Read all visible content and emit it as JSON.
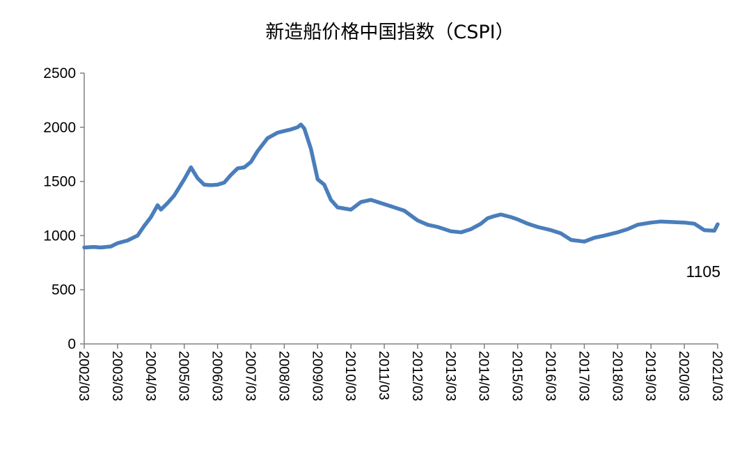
{
  "chart_data": {
    "type": "line",
    "title": "新造船价格中国指数（CSPI）",
    "xlabel": "",
    "ylabel": "",
    "ylim": [
      0,
      2500
    ],
    "yticks": [
      "0",
      "500",
      "1000",
      "1500",
      "2000",
      "2500"
    ],
    "grid": false,
    "legend": "none",
    "x_tick_labels": [
      "2002/03",
      "2003/03",
      "2004/03",
      "2005/03",
      "2006/03",
      "2007/03",
      "2008/03",
      "2009/03",
      "2010/03",
      "2011/03",
      "2012/03",
      "2013/03",
      "2014/03",
      "2015/03",
      "2016/03",
      "2017/03",
      "2018/03",
      "2019/03",
      "2020/03",
      "2021/03"
    ],
    "series": [
      {
        "color": "#4a7ebb",
        "x": [
          2002.0,
          2002.3,
          2002.5,
          2002.8,
          2003.0,
          2003.3,
          2003.6,
          2003.8,
          2004.0,
          2004.2,
          2004.3,
          2004.5,
          2004.7,
          2004.8,
          2005.0,
          2005.2,
          2005.4,
          2005.6,
          2005.8,
          2006.0,
          2006.2,
          2006.4,
          2006.6,
          2006.8,
          2007.0,
          2007.2,
          2007.5,
          2007.8,
          2008.0,
          2008.2,
          2008.4,
          2008.5,
          2008.6,
          2008.8,
          2009.0,
          2009.2,
          2009.4,
          2009.6,
          2010.0,
          2010.3,
          2010.6,
          2011.0,
          2011.3,
          2011.6,
          2012.0,
          2012.3,
          2012.6,
          2013.0,
          2013.3,
          2013.6,
          2013.9,
          2014.1,
          2014.3,
          2014.5,
          2014.8,
          2015.0,
          2015.3,
          2015.6,
          2016.0,
          2016.3,
          2016.6,
          2017.0,
          2017.3,
          2017.6,
          2018.0,
          2018.3,
          2018.6,
          2019.0,
          2019.3,
          2019.6,
          2020.0,
          2020.3,
          2020.6,
          2020.9,
          2021.0
        ],
        "values": [
          890,
          895,
          890,
          900,
          930,
          955,
          1000,
          1090,
          1170,
          1280,
          1240,
          1300,
          1370,
          1420,
          1520,
          1630,
          1530,
          1470,
          1465,
          1470,
          1490,
          1560,
          1620,
          1630,
          1680,
          1780,
          1900,
          1950,
          1965,
          1980,
          2000,
          2025,
          1990,
          1800,
          1520,
          1470,
          1330,
          1260,
          1240,
          1310,
          1330,
          1290,
          1260,
          1230,
          1140,
          1100,
          1080,
          1040,
          1030,
          1060,
          1110,
          1160,
          1180,
          1195,
          1170,
          1150,
          1110,
          1080,
          1050,
          1020,
          960,
          945,
          980,
          1000,
          1030,
          1060,
          1100,
          1120,
          1130,
          1125,
          1120,
          1110,
          1050,
          1045,
          1105
        ]
      }
    ],
    "annotations": [
      "1105"
    ]
  }
}
